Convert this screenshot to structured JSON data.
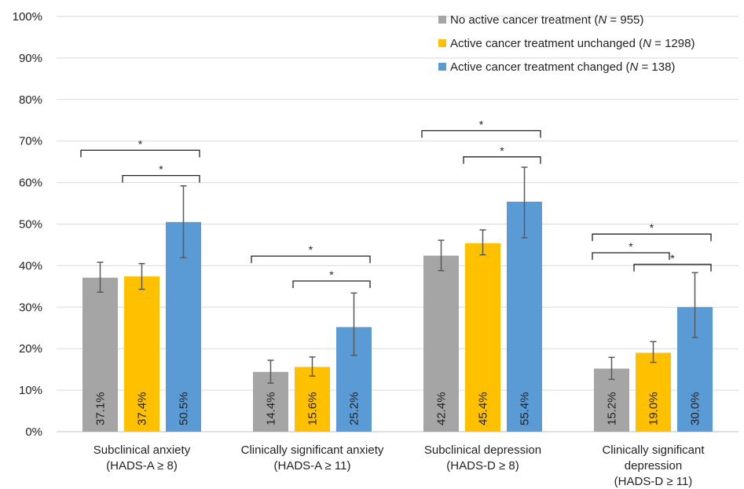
{
  "chart_data": {
    "type": "bar",
    "categories": [
      [
        "Subclinical anxiety",
        "(HADS-A ≥ 8)"
      ],
      [
        "Clinically significant anxiety",
        "(HADS-A ≥ 11)"
      ],
      [
        "Subclinical depression",
        "(HADS-D ≥ 8)"
      ],
      [
        "Clinically significant",
        "depression",
        "(HADS-D ≥ 11)"
      ]
    ],
    "series": [
      {
        "name": "No active cancer treatment (N = 955)",
        "name_parts": [
          "No active cancer treatment (",
          "N",
          " = 955)"
        ],
        "color": "#A5A5A5",
        "values": [
          37.1,
          14.4,
          42.4,
          15.2
        ],
        "err_low": [
          33.6,
          11.7,
          38.8,
          12.6
        ],
        "err_high": [
          40.8,
          17.2,
          46.1,
          17.9
        ],
        "labels": [
          "37.1%",
          "14.4%",
          "42.4%",
          "15.2%"
        ]
      },
      {
        "name": "Active cancer treatment unchanged (N = 1298)",
        "name_parts": [
          "Active cancer treatment unchanged (",
          "N",
          " = 1298)"
        ],
        "color": "#FFC000",
        "values": [
          37.4,
          15.6,
          45.4,
          19.0
        ],
        "err_low": [
          34.3,
          13.4,
          42.6,
          16.7
        ],
        "err_high": [
          40.5,
          18.0,
          48.6,
          21.7
        ],
        "labels": [
          "37.4%",
          "15.6%",
          "45.4%",
          "19.0%"
        ]
      },
      {
        "name": "Active cancer treatment changed (N = 138)",
        "name_parts": [
          "Active cancer treatment changed (",
          "N",
          " = 138)"
        ],
        "color": "#5B9BD5",
        "values": [
          50.5,
          25.2,
          55.4,
          30.0
        ],
        "err_low": [
          41.9,
          18.4,
          46.7,
          22.7
        ],
        "err_high": [
          59.2,
          33.4,
          63.7,
          38.3
        ],
        "labels": [
          "50.5%",
          "25.2%",
          "55.4%",
          "30.0%"
        ]
      }
    ],
    "ylim": [
      0,
      100
    ],
    "yticks": [
      "0%",
      "10%",
      "20%",
      "30%",
      "40%",
      "50%",
      "60%",
      "70%",
      "80%",
      "90%",
      "100%"
    ],
    "grid": true,
    "legend_position": "top-right",
    "significance": [
      {
        "category": 0,
        "from": 0,
        "to": 2,
        "level": 67.8,
        "label": "*"
      },
      {
        "category": 0,
        "from": 1,
        "to": 2,
        "level": 61.7,
        "label": "*"
      },
      {
        "category": 1,
        "from": 0,
        "to": 2,
        "level": 42.3,
        "label": "*"
      },
      {
        "category": 1,
        "from": 1,
        "to": 2,
        "level": 36.3,
        "label": "*"
      },
      {
        "category": 2,
        "from": 0,
        "to": 2,
        "level": 72.5,
        "label": "*"
      },
      {
        "category": 2,
        "from": 1,
        "to": 2,
        "level": 66.2,
        "label": "*"
      },
      {
        "category": 3,
        "from": 0,
        "to": 2,
        "level": 47.6,
        "label": "*"
      },
      {
        "category": 3,
        "from": 0,
        "to": 1,
        "level": 43.1,
        "label": "*"
      },
      {
        "category": 3,
        "from": 1,
        "to": 2,
        "level": 40.3,
        "label": "*"
      }
    ]
  }
}
